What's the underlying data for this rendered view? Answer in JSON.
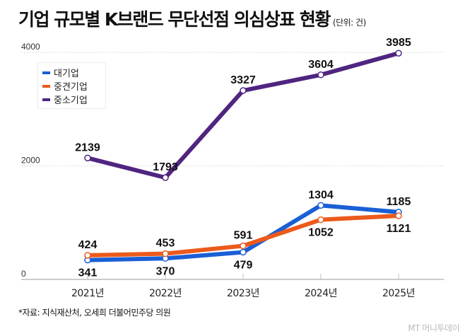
{
  "title": "기업 규모별 K브랜드 무단선점 의심상표 현황",
  "unit": "(단위: 건)",
  "source": "*자료: 지식재산처, 오세희 더불어민주당 의원",
  "watermark": "MT 머니투데이",
  "chart_data": {
    "type": "line",
    "categories": [
      "2021년",
      "2022년",
      "2023년",
      "2024년",
      "2025년"
    ],
    "ylim": [
      0,
      4000
    ],
    "yticks": [
      0,
      2000,
      4000
    ],
    "ytick_labels": [
      "0",
      "2000",
      "4000"
    ],
    "grid": true,
    "legend": "top-left",
    "series": [
      {
        "name": "대기업",
        "values": [
          341,
          370,
          479,
          1304,
          1185
        ],
        "color": "#1a5fd6"
      },
      {
        "name": "중견기업",
        "values": [
          424,
          453,
          591,
          1052,
          1121
        ],
        "color": "#ec5a1c"
      },
      {
        "name": "중소기업",
        "values": [
          2139,
          1793,
          3327,
          3604,
          3985
        ],
        "color": "#4f2580"
      }
    ]
  }
}
